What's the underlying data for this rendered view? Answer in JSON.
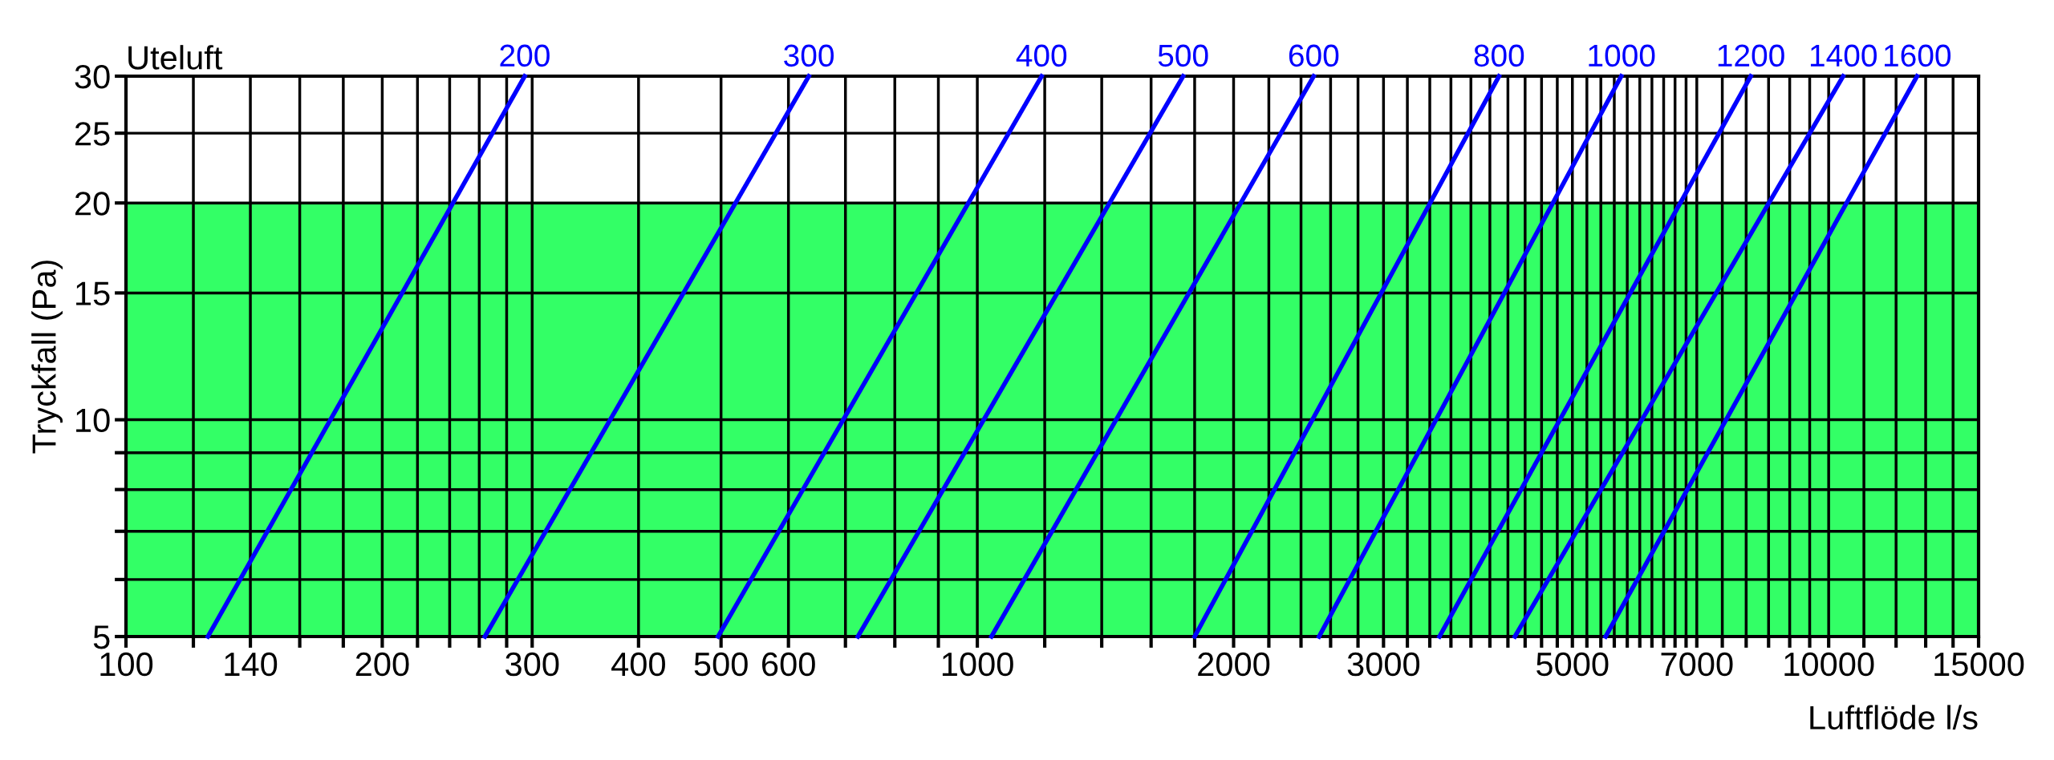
{
  "chart_data": {
    "type": "line",
    "title": "Uteluft",
    "xlabel": "Luftflöde l/s",
    "ylabel": "Tryckfall (Pa)",
    "log": "xy",
    "grid": true,
    "legend": false,
    "marker": "none",
    "line_style": "solid",
    "xlim": [
      100,
      15000
    ],
    "ylim": [
      5,
      30
    ],
    "xticks": [
      100,
      {
        "value": 120,
        "label": null
      },
      140,
      {
        "value": 160,
        "label": null
      },
      {
        "value": 180,
        "label": null
      },
      200,
      {
        "value": 220,
        "label": null
      },
      {
        "value": 240,
        "label": null
      },
      {
        "value": 260,
        "label": null
      },
      {
        "value": 280,
        "label": null
      },
      300,
      400,
      500,
      600,
      {
        "value": 700,
        "label": null
      },
      {
        "value": 800,
        "label": null
      },
      {
        "value": 900,
        "label": null
      },
      1000,
      {
        "value": 1200,
        "label": null
      },
      {
        "value": 1400,
        "label": null
      },
      {
        "value": 1600,
        "label": null
      },
      {
        "value": 1800,
        "label": null
      },
      2000,
      {
        "value": 2200,
        "label": null
      },
      {
        "value": 2400,
        "label": null
      },
      {
        "value": 2600,
        "label": null
      },
      {
        "value": 2800,
        "label": null
      },
      3000,
      {
        "value": 3200,
        "label": null
      },
      {
        "value": 3400,
        "label": null
      },
      {
        "value": 3600,
        "label": null
      },
      {
        "value": 3800,
        "label": null
      },
      {
        "value": 4000,
        "label": null
      },
      {
        "value": 4200,
        "label": null
      },
      {
        "value": 4400,
        "label": null
      },
      {
        "value": 4600,
        "label": null
      },
      {
        "value": 4800,
        "label": null
      },
      5000,
      {
        "value": 5200,
        "label": null
      },
      {
        "value": 5400,
        "label": null
      },
      {
        "value": 5600,
        "label": null
      },
      {
        "value": 5800,
        "label": null
      },
      {
        "value": 6000,
        "label": null
      },
      {
        "value": 6200,
        "label": null
      },
      {
        "value": 6400,
        "label": null
      },
      {
        "value": 6600,
        "label": null
      },
      {
        "value": 6800,
        "label": null
      },
      7000,
      {
        "value": 7500,
        "label": null
      },
      {
        "value": 8000,
        "label": null
      },
      {
        "value": 8500,
        "label": null
      },
      {
        "value": 9000,
        "label": null
      },
      {
        "value": 9500,
        "label": null
      },
      10000,
      {
        "value": 11000,
        "label": null
      },
      {
        "value": 12000,
        "label": null
      },
      {
        "value": 13000,
        "label": null
      },
      {
        "value": 14000,
        "label": null
      },
      15000
    ],
    "yticks": [
      5,
      {
        "value": 6,
        "label": null
      },
      {
        "value": 7,
        "label": null
      },
      {
        "value": 8,
        "label": null
      },
      {
        "value": 9,
        "label": null
      },
      10,
      15,
      20,
      25,
      30
    ],
    "bands": [
      {
        "axis": "y",
        "from": 5,
        "to": 20,
        "color": "#33ff66"
      }
    ],
    "series": [
      {
        "name": "200",
        "color": "#0000ff",
        "x": [
          124.8,
          294
        ],
        "values": [
          5,
          30
        ]
      },
      {
        "name": "300",
        "color": "#0000ff",
        "x": [
          264,
          634
        ],
        "values": [
          5,
          30
        ]
      },
      {
        "name": "400",
        "color": "#0000ff",
        "x": [
          496,
          1190
        ],
        "values": [
          5,
          30
        ]
      },
      {
        "name": "500",
        "color": "#0000ff",
        "x": [
          724,
          1745
        ],
        "values": [
          5,
          30
        ]
      },
      {
        "name": "600",
        "color": "#0000ff",
        "x": [
          1039,
          2484
        ],
        "values": [
          5,
          30
        ]
      },
      {
        "name": "800",
        "color": "#0000ff",
        "x": [
          1800,
          4100
        ],
        "values": [
          5,
          30
        ]
      },
      {
        "name": "1000",
        "color": "#0000ff",
        "x": [
          2520,
          5707
        ],
        "values": [
          5,
          30
        ]
      },
      {
        "name": "1200",
        "color": "#0000ff",
        "x": [
          3490,
          8100
        ],
        "values": [
          5,
          30
        ]
      },
      {
        "name": "1400",
        "color": "#0000ff",
        "x": [
          4280,
          10400
        ],
        "values": [
          5,
          30
        ]
      },
      {
        "name": "1600",
        "color": "#0000ff",
        "x": [
          5470,
          12700
        ],
        "values": [
          5,
          30
        ]
      }
    ]
  }
}
